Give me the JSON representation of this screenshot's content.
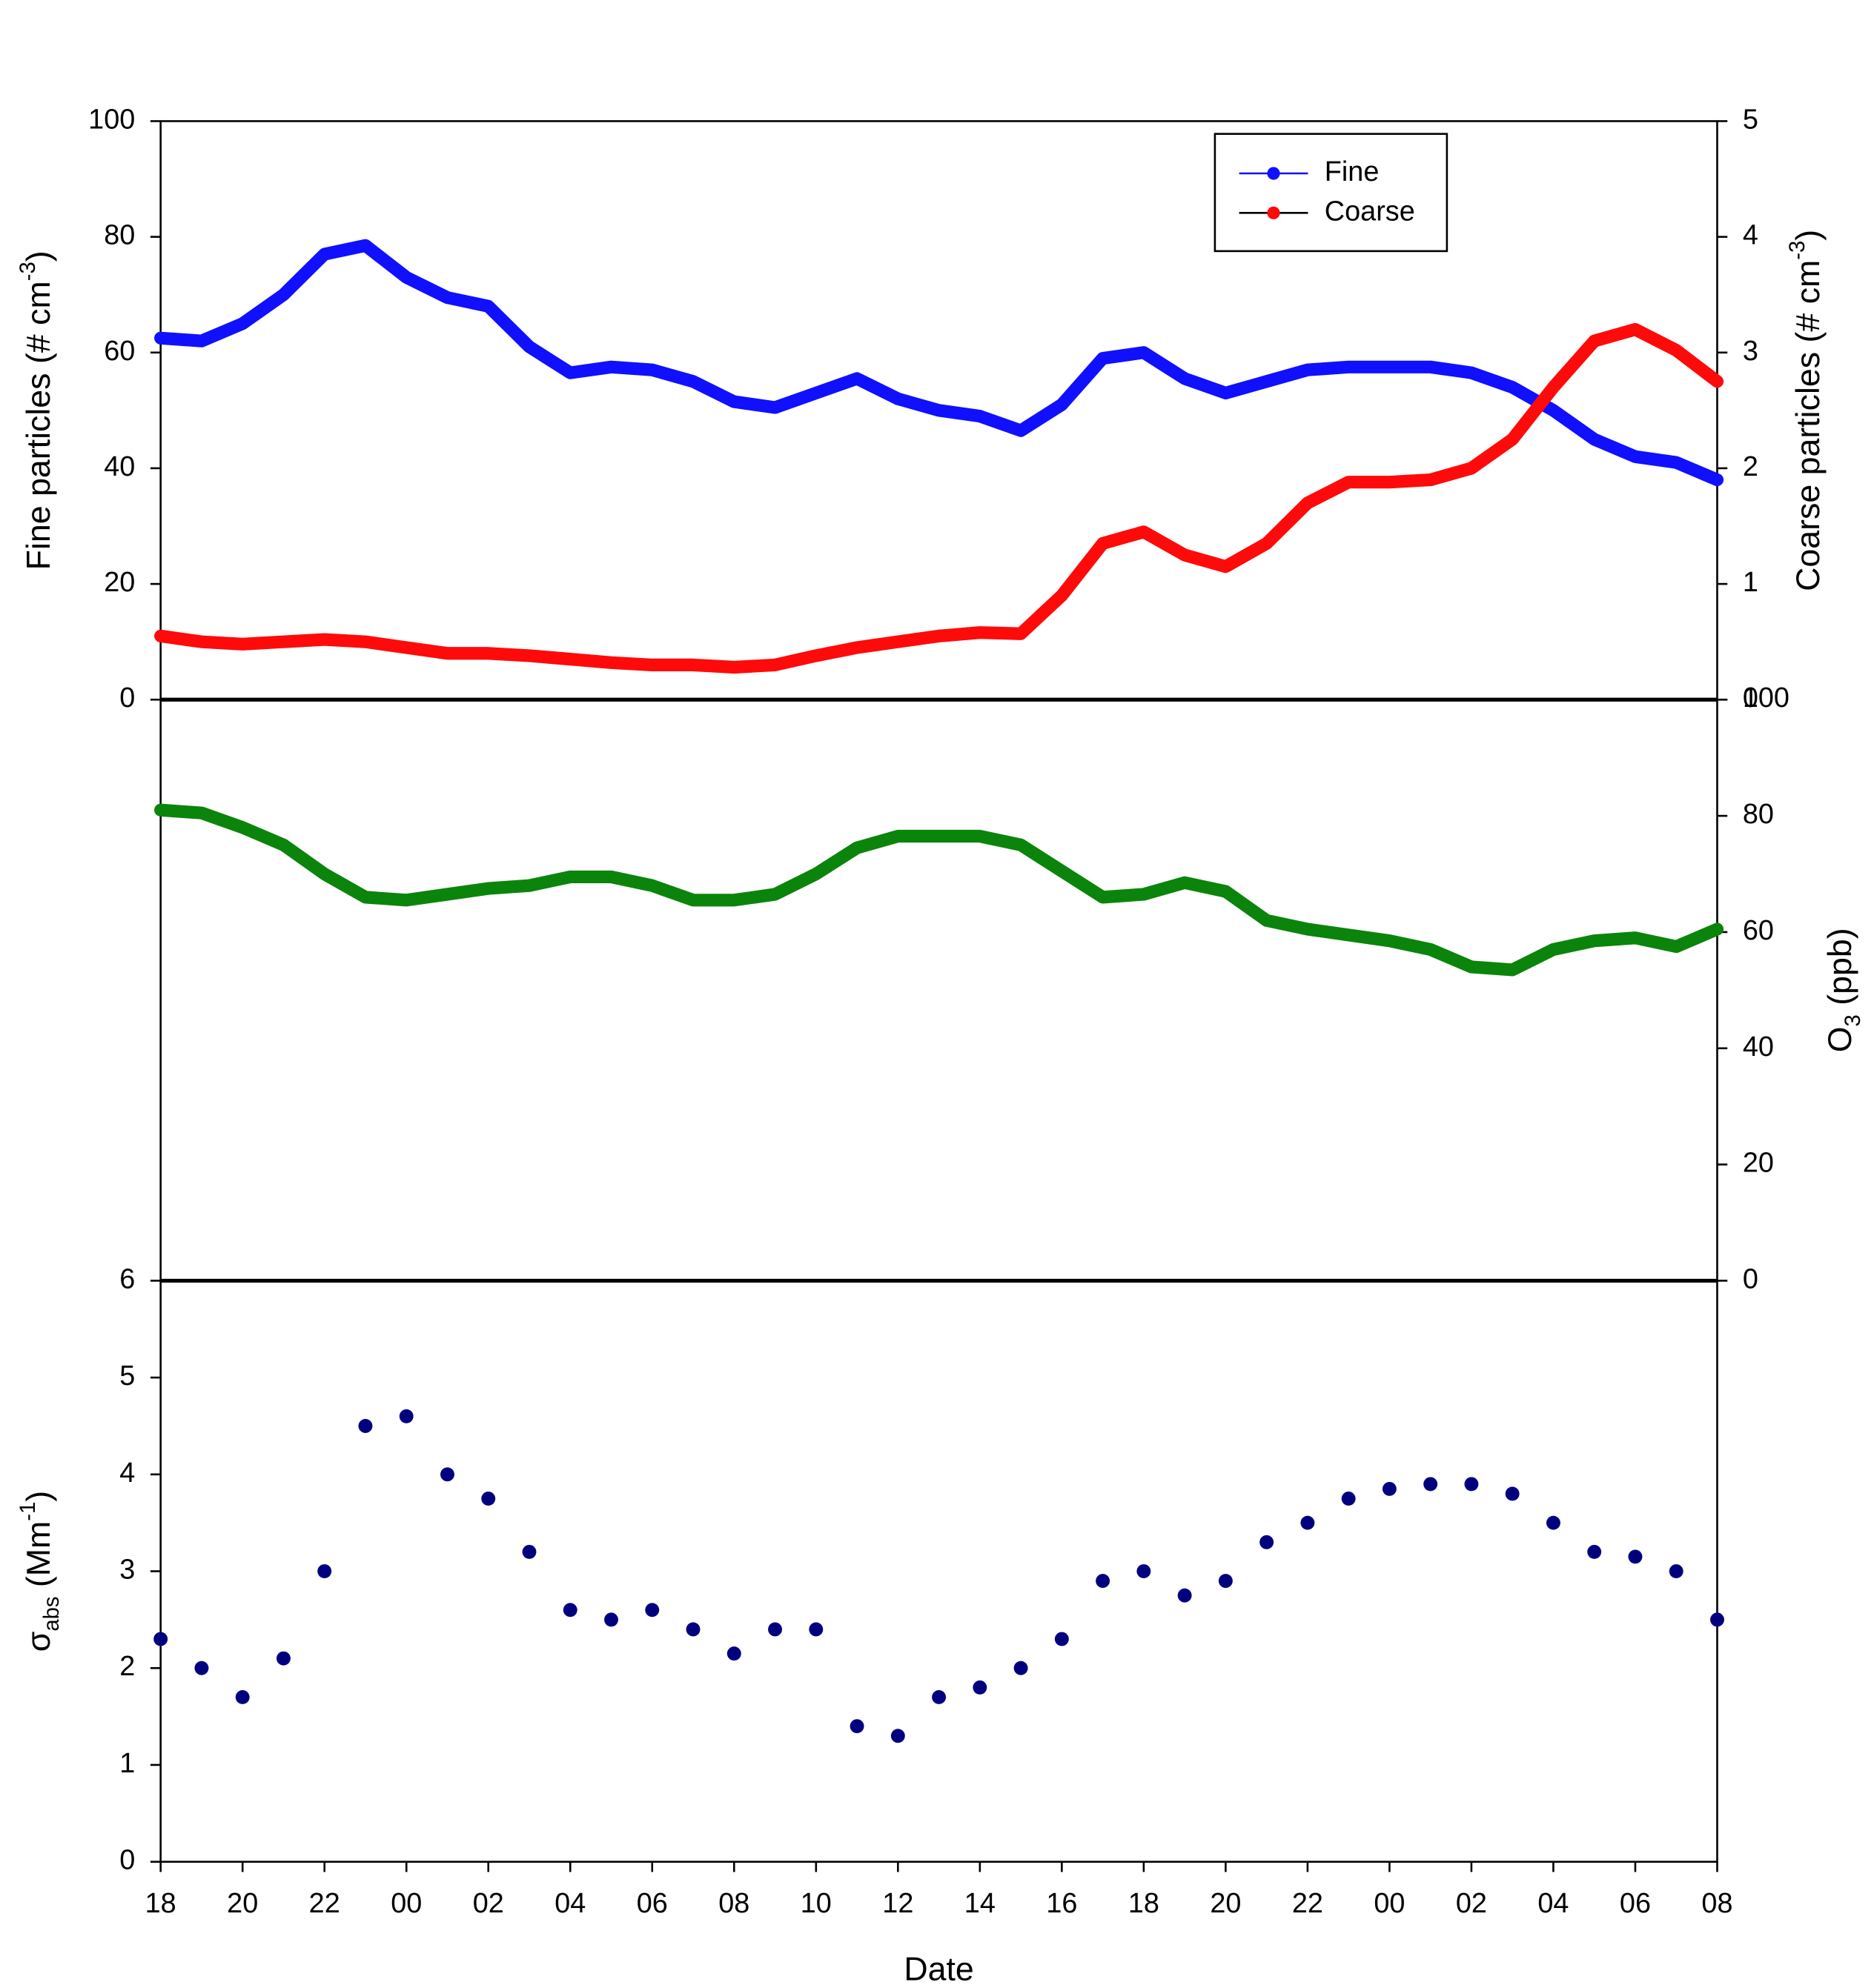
{
  "chart_data": [
    {
      "type": "line",
      "ylabel": [
        {
          "text": "Fine particles (# cm"
        },
        {
          "text": "-3",
          "sup": true
        },
        {
          "text": ")"
        }
      ],
      "y2label": [
        {
          "text": "Coarse particles (# cm"
        },
        {
          "text": "-3",
          "sup": true
        },
        {
          "text": ")"
        }
      ],
      "x": [
        0,
        1,
        2,
        3,
        4,
        5,
        6,
        7,
        8,
        9,
        10,
        11,
        12,
        13,
        14,
        15,
        16,
        17,
        18,
        19,
        20,
        21,
        22,
        23,
        24,
        25,
        26,
        27,
        28,
        29,
        30,
        31,
        32,
        33,
        34,
        35,
        36,
        37,
        38
      ],
      "xlim": [
        0,
        38
      ],
      "ylim": [
        0,
        100
      ],
      "yticks": [
        0,
        20,
        40,
        60,
        80,
        100
      ],
      "y2lim": [
        0,
        5
      ],
      "y2ticks": [
        0,
        1,
        2,
        3,
        4,
        5
      ],
      "legend": "upper right",
      "series": [
        {
          "name": "Fine",
          "color": "#1010ff",
          "values": [
            62.5,
            62,
            65,
            70,
            77,
            78.5,
            73,
            69.5,
            68,
            61,
            56.5,
            57.5,
            57,
            55,
            51.5,
            50.5,
            53,
            55.5,
            52,
            50,
            49,
            46.5,
            51,
            59,
            60,
            55.5,
            53,
            55,
            57,
            57.5,
            57.5,
            57.5,
            56.5,
            54,
            50,
            45,
            42,
            41,
            38
          ]
        },
        {
          "name": "Coarse",
          "color": "#ff0a0a",
          "axis": "y2",
          "values": [
            0.55,
            0.5,
            0.48,
            0.5,
            0.52,
            0.5,
            0.45,
            0.4,
            0.4,
            0.38,
            0.35,
            0.32,
            0.3,
            0.3,
            0.28,
            0.3,
            0.38,
            0.45,
            0.5,
            0.55,
            0.58,
            0.57,
            0.9,
            1.35,
            1.45,
            1.25,
            1.15,
            1.35,
            1.7,
            1.88,
            1.88,
            1.9,
            2.0,
            2.25,
            2.7,
            3.1,
            3.2,
            3.02,
            2.75
          ]
        }
      ]
    },
    {
      "type": "line",
      "yaxis_side": "right",
      "ylabel": [
        {
          "text": "O"
        },
        {
          "text": "3",
          "sub": true
        },
        {
          "text": " (ppb)"
        }
      ],
      "x": [
        0,
        1,
        2,
        3,
        4,
        5,
        6,
        7,
        8,
        9,
        10,
        11,
        12,
        13,
        14,
        15,
        16,
        17,
        18,
        19,
        20,
        21,
        22,
        23,
        24,
        25,
        26,
        27,
        28,
        29,
        30,
        31,
        32,
        33,
        34,
        35,
        36,
        37,
        38
      ],
      "xlim": [
        0,
        38
      ],
      "ylim": [
        0,
        100
      ],
      "yticks": [
        0,
        20,
        40,
        60,
        80,
        100
      ],
      "series": [
        {
          "color": "#0b840b",
          "values": [
            81,
            80.5,
            78,
            75,
            70,
            66,
            65.5,
            66.5,
            67.5,
            68,
            69.5,
            69.5,
            68,
            65.5,
            65.5,
            66.5,
            70,
            74.5,
            76.5,
            76.5,
            76.5,
            75,
            70.5,
            66,
            66.5,
            68.5,
            67,
            62,
            60.5,
            59.5,
            58.5,
            57,
            54,
            53.5,
            57,
            58.5,
            59,
            57.5,
            60.5
          ]
        }
      ]
    },
    {
      "type": "scatter",
      "ylabel": [
        {
          "text": "σ"
        },
        {
          "text": "abs",
          "sub": true
        },
        {
          "text": " (Mm"
        },
        {
          "text": "-1",
          "sup": true
        },
        {
          "text": ")"
        }
      ],
      "xlabel": "Date",
      "x": [
        0,
        1,
        2,
        3,
        4,
        5,
        6,
        7,
        8,
        9,
        10,
        11,
        12,
        13,
        14,
        15,
        16,
        17,
        18,
        19,
        20,
        21,
        22,
        23,
        24,
        25,
        26,
        27,
        28,
        29,
        30,
        31,
        32,
        33,
        34,
        35,
        36,
        37,
        38
      ],
      "xlim": [
        0,
        38
      ],
      "xticks": [
        {
          "value": 0,
          "label": "18"
        },
        {
          "value": 2,
          "label": "20"
        },
        {
          "value": 4,
          "label": "22"
        },
        {
          "value": 6,
          "label": "00"
        },
        {
          "value": 8,
          "label": "02"
        },
        {
          "value": 10,
          "label": "04"
        },
        {
          "value": 12,
          "label": "06"
        },
        {
          "value": 14,
          "label": "08"
        },
        {
          "value": 16,
          "label": "10"
        },
        {
          "value": 18,
          "label": "12"
        },
        {
          "value": 20,
          "label": "14"
        },
        {
          "value": 22,
          "label": "16"
        },
        {
          "value": 24,
          "label": "18"
        },
        {
          "value": 26,
          "label": "20"
        },
        {
          "value": 28,
          "label": "22"
        },
        {
          "value": 30,
          "label": "00"
        },
        {
          "value": 32,
          "label": "02"
        },
        {
          "value": 34,
          "label": "04"
        },
        {
          "value": 36,
          "label": "06"
        },
        {
          "value": 38,
          "label": "08"
        }
      ],
      "ylim": [
        0,
        6
      ],
      "yticks": [
        0,
        1,
        2,
        3,
        4,
        5,
        6
      ],
      "series": [
        {
          "color": "#00007f",
          "values": [
            2.3,
            2.0,
            1.7,
            2.1,
            3.0,
            4.5,
            4.6,
            4.0,
            3.75,
            3.2,
            2.6,
            2.5,
            2.6,
            2.4,
            2.15,
            2.4,
            2.4,
            1.4,
            1.3,
            1.7,
            1.8,
            2.0,
            2.3,
            2.9,
            3.0,
            2.75,
            2.9,
            3.3,
            3.5,
            3.75,
            3.85,
            3.9,
            3.9,
            3.8,
            3.5,
            3.2,
            3.15,
            3.0,
            2.5
          ]
        }
      ]
    }
  ]
}
